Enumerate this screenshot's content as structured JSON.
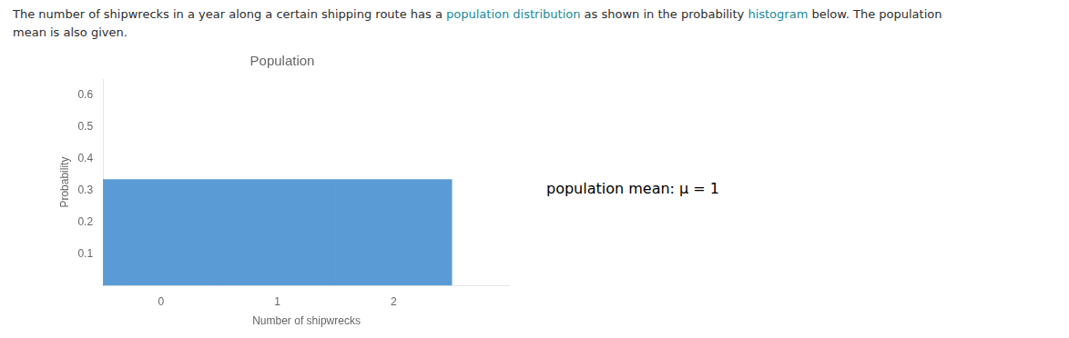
{
  "chart_data": {
    "type": "bar",
    "title": "Population",
    "xlabel": "Number of shipwrecks",
    "ylabel": "Probability",
    "x": [
      0,
      1,
      2
    ],
    "values": [
      0.3333,
      0.3333,
      0.3333
    ],
    "color": "#5B9BD5",
    "xlim": [
      -0.5,
      3.0
    ],
    "xticks": [
      0,
      1,
      2
    ],
    "ylim": [
      0,
      0.65
    ],
    "yticks": [
      0.1,
      0.2,
      0.3,
      0.4,
      0.5,
      0.6
    ],
    "grid": false,
    "subtitle": [
      [
        {
          "text": "The number of shipwrecks in a year along a certain shipping route has a ",
          "color": "#2e2e2e"
        },
        {
          "text": "population distribution",
          "color": "#1a8a9a"
        },
        {
          "text": " as shown in the probability ",
          "color": "#2e2e2e"
        },
        {
          "text": "histogram",
          "color": "#1a8a9a"
        },
        {
          "text": " below. The population",
          "color": "#2e2e2e"
        }
      ],
      [
        {
          "text": "mean is also given.",
          "color": "#2e2e2e"
        }
      ]
    ],
    "annotations": [
      "population mean: μ = 1"
    ]
  }
}
